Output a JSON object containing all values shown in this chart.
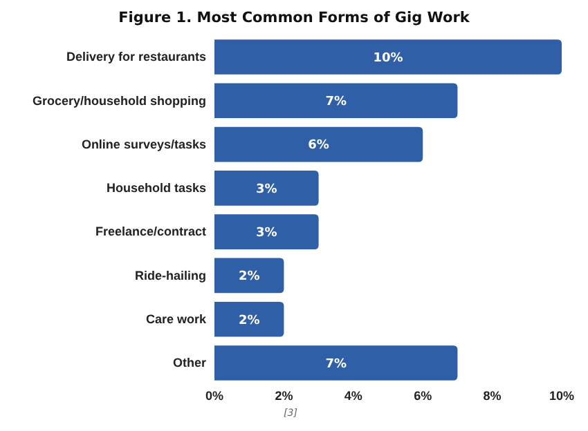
{
  "chart_data": {
    "type": "bar",
    "orientation": "horizontal",
    "title": "Figure 1. Most Common Forms of Gig Work",
    "categories": [
      "Delivery for restaurants",
      "Grocery/household shopping",
      "Online surveys/tasks",
      "Household tasks",
      "Freelance/contract",
      "Ride-hailing",
      "Care work",
      "Other"
    ],
    "values": [
      10,
      7,
      6,
      3,
      3,
      2,
      2,
      7
    ],
    "value_labels": [
      "10%",
      "7%",
      "6%",
      "3%",
      "3%",
      "2%",
      "2%",
      "7%"
    ],
    "color": "#2f5fa7",
    "xlim": [
      0,
      10
    ],
    "xticks": [
      {
        "value": 0,
        "label": "0%"
      },
      {
        "value": 2,
        "label": "2%"
      },
      {
        "value": 4,
        "label": "4%"
      },
      {
        "value": 6,
        "label": "6%"
      },
      {
        "value": 8,
        "label": "8%"
      },
      {
        "value": 10,
        "label": "10%"
      }
    ],
    "grid": false,
    "annotations": [
      "[3]"
    ]
  }
}
